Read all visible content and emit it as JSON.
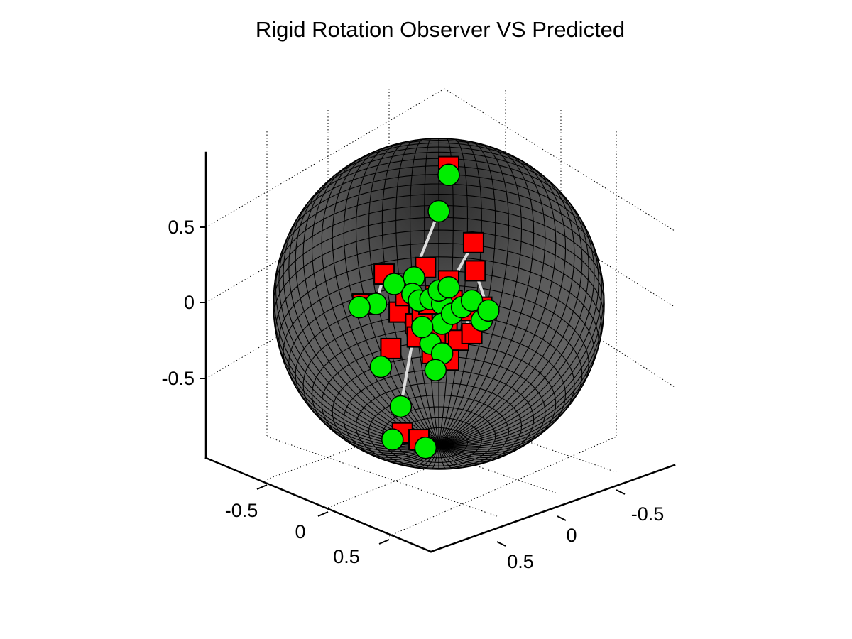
{
  "chart_data": {
    "type": "scatter",
    "title": "Rigid Rotation Observer VS Predicted",
    "xlabel": "",
    "ylabel": "",
    "zlabel": "",
    "xlim": [
      -1,
      1
    ],
    "ylim": [
      -1,
      1
    ],
    "zlim": [
      -1,
      1
    ],
    "grid": true,
    "x_ticks": [
      "-0.5",
      "0",
      "0.5"
    ],
    "y_ticks": [
      "-0.5",
      "0",
      "0.5"
    ],
    "z_ticks": [
      "-0.5",
      "0",
      "0.5"
    ],
    "view": "3D box, sphere of radius ~0.85 centred at origin, meshed surface",
    "colors": {
      "sphere_fill": "#555555",
      "sphere_mesh": "#000000",
      "observed_marker": "#00ee00",
      "predicted_marker": "#ff0000",
      "connector": "#dddddd"
    },
    "series": [],
    "points": [
      {
        "obs": [
          0.06,
          0.78
        ],
        "pred": [
          0.06,
          0.83
        ]
      },
      {
        "obs": [
          0.0,
          0.56
        ],
        "pred": [
          -0.24,
          -0.05
        ]
      },
      {
        "obs": [
          -0.38,
          0.0
        ],
        "pred": [
          -0.33,
          0.18
        ]
      },
      {
        "obs": [
          -0.35,
          -0.38
        ],
        "pred": [
          -0.29,
          -0.27
        ]
      },
      {
        "obs": [
          -0.23,
          -0.62
        ],
        "pred": [
          -0.14,
          -0.12
        ]
      },
      {
        "obs": [
          -0.27,
          0.12
        ],
        "pred": [
          -0.2,
          0.05
        ]
      },
      {
        "obs": [
          -0.15,
          0.16
        ],
        "pred": [
          -0.08,
          0.22
        ]
      },
      {
        "obs": [
          -0.16,
          0.06
        ],
        "pred": [
          -0.1,
          -0.05
        ]
      },
      {
        "obs": [
          -0.12,
          0.02
        ],
        "pred": [
          -0.06,
          0.0
        ]
      },
      {
        "obs": [
          -0.05,
          0.03
        ],
        "pred": [
          -0.02,
          0.05
        ]
      },
      {
        "obs": [
          0.02,
          0.0
        ],
        "pred": [
          0.08,
          0.02
        ]
      },
      {
        "obs": [
          0.0,
          0.08
        ],
        "pred": [
          0.06,
          0.14
        ]
      },
      {
        "obs": [
          0.02,
          -0.12
        ],
        "pred": [
          0.05,
          -0.18
        ]
      },
      {
        "obs": [
          -0.05,
          -0.24
        ],
        "pred": [
          -0.02,
          -0.18
        ]
      },
      {
        "obs": [
          -0.1,
          -0.14
        ],
        "pred": [
          -0.13,
          -0.2
        ]
      },
      {
        "obs": [
          0.08,
          -0.06
        ],
        "pred": [
          0.12,
          -0.22
        ]
      },
      {
        "obs": [
          0.14,
          -0.02
        ],
        "pred": [
          0.2,
          -0.18
        ]
      },
      {
        "obs": [
          0.2,
          0.02
        ],
        "pred": [
          0.26,
          -0.02
        ]
      },
      {
        "obs": [
          0.26,
          -0.1
        ],
        "pred": [
          0.18,
          -0.04
        ]
      },
      {
        "obs": [
          0.3,
          -0.04
        ],
        "pred": [
          0.22,
          0.2
        ]
      },
      {
        "obs": [
          0.06,
          0.1
        ],
        "pred": [
          0.21,
          0.37
        ]
      },
      {
        "obs": [
          0.02,
          -0.3
        ],
        "pred": [
          0.06,
          -0.34
        ]
      },
      {
        "obs": [
          -0.02,
          -0.4
        ],
        "pred": [
          -0.04,
          -0.3
        ]
      },
      {
        "obs": [
          -0.48,
          -0.02
        ],
        "pred": [
          -0.46,
          0.0
        ]
      },
      {
        "obs": [
          -0.28,
          -0.82
        ],
        "pred": [
          -0.22,
          -0.78
        ]
      },
      {
        "obs": [
          -0.08,
          -0.87
        ],
        "pred": [
          -0.12,
          -0.82
        ]
      }
    ]
  }
}
